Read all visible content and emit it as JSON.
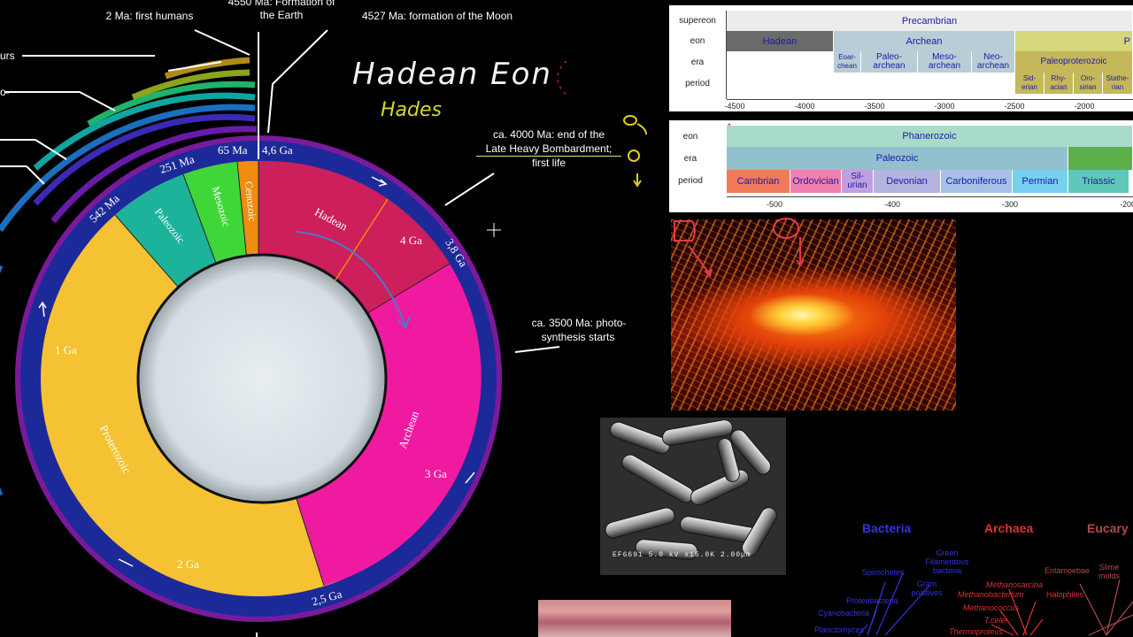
{
  "clock": {
    "eras": {
      "hadean": "Hadean",
      "archean": "Archean",
      "proterozoic": "Proterozoic",
      "paleozoic": "Paleozoic",
      "mesozoic": "Mesozoic",
      "cenozoic": "Cenozoic"
    },
    "ticks": {
      "ma65": "65 Ma",
      "ga46": "4,6 Ga",
      "ma251": "251 Ma",
      "ma542": "542 Ma",
      "ga4": "4 Ga",
      "ga38": "3,8 Ga",
      "ga1": "1 Ga",
      "ga3": "3 Ga",
      "ga2": "2 Ga",
      "ga25": "2,5 Ga"
    },
    "callouts": {
      "humans": "2 Ma: first humans",
      "earth": "4550 Ma: Formation of the Earth",
      "moon": "4527 Ma: formation of the Moon",
      "bombardment_1": "ca. 4000 Ma: end of the",
      "bombardment_2": "Late Heavy Bombardment;",
      "bombardment_3": "first life",
      "photo_1": "ca. 3500 Ma: photo-",
      "photo_2": "synthesis starts",
      "left_1": "urs",
      "left_2": "o-"
    }
  },
  "handwriting": {
    "title": "Hadean Eon",
    "subtitle": "Hades"
  },
  "precambrian_timeline": {
    "row_labels": {
      "supereon": "supereon",
      "eon": "eon",
      "era": "era",
      "period": "period"
    },
    "supereon": "Precambrian",
    "eons": {
      "hadean": "Hadean",
      "archean": "Archean",
      "proterozoic": "P"
    },
    "eras": {
      "eoarchean": "Eoar-\nchean",
      "paleoarchean": "Paleo-\narchean",
      "mesoarchean": "Meso-\narchean",
      "neoarchean": "Neo-\narchean",
      "paleoproterozoic": "Paleoproterozoic"
    },
    "periods": {
      "siderian": "Sid-\nerian",
      "rhyacian": "Rhy-\nacian",
      "orosirian": "Oro-\nsirian",
      "statherian": "Stathe-\nrian"
    },
    "axis": [
      "-4500",
      "-4000",
      "-3500",
      "-3000",
      "-2500",
      "-2000"
    ]
  },
  "phanerozoic_timeline": {
    "row_labels": {
      "eon": "eon",
      "era": "era",
      "period": "period"
    },
    "marker": "*",
    "eon": "Phanerozoic",
    "era": "Paleozoic",
    "periods": {
      "cambrian": "Cambrian",
      "ordovician": "Ordovician",
      "silurian": "Sil-\nurian",
      "devonian": "Devonian",
      "carboniferous": "Carboniferous",
      "permian": "Permian",
      "triassic": "Triassic"
    },
    "axis": [
      "-500",
      "-400",
      "-300",
      "-200"
    ]
  },
  "microscope_caption": "EF6691   5.0 kV  x15.0K  2.00µm",
  "tree": {
    "bacteria": "Bacteria",
    "archaea": "Archaea",
    "eucarya": "Eucary",
    "green_filamentous": "Green\nFilamentous\nbacteria",
    "spirochetes": "Spirochetes",
    "gram_positives": "Gram\npositives",
    "proteobacteria": "Proteobacteria",
    "cyanobacteria": "Cyanobacteria",
    "planctomyces": "Planctomyces",
    "methanosarcina": "Methanosarcina",
    "methanobacterium": "Methanobacterium",
    "methanococcus": "Methanococcus",
    "tceler": "T.celer",
    "thermoproteus": "Thermoproteus",
    "halophiles": "Halophiles",
    "entamoebae": "Entamoebae",
    "slime_molds": "Slime\nmolds"
  },
  "colors": {
    "hadean": "#cc1f5c",
    "archean": "#f01aa0",
    "proterozoic": "#f5c234",
    "paleozoic": "#1db39a",
    "mesozoic": "#3fd63a",
    "cenozoic": "#f08c0f",
    "ring": "#1c2a99",
    "bacteria": "#3333dd",
    "archaea": "#dd3333",
    "eucarya": "#b04a4a"
  }
}
